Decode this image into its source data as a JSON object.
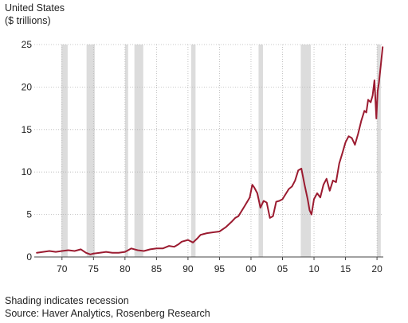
{
  "header": {
    "line1": "United States",
    "line2": "($ trillions)"
  },
  "footer": {
    "note": "Shading indicates recession",
    "source": "Source: Haver Analytics, Rosenberg Research"
  },
  "chart_data": {
    "type": "line",
    "series_color": "#9b1b30",
    "recession_color": "#dcdcdc",
    "grid": true,
    "xlim": [
      1965.6,
      2021.0
    ],
    "ylim": [
      0,
      25
    ],
    "x_ticks": [
      1970,
      1975,
      1980,
      1985,
      1990,
      1995,
      2000,
      2005,
      2010,
      2015,
      2020
    ],
    "x_tick_labels": [
      "70",
      "75",
      "80",
      "85",
      "90",
      "95",
      "00",
      "05",
      "10",
      "15",
      "20"
    ],
    "y_ticks": [
      0,
      5,
      10,
      15,
      20,
      25
    ],
    "y_tick_labels": [
      "0",
      "5",
      "10",
      "15",
      "20",
      "25"
    ],
    "recessions": [
      [
        1969.9,
        1970.9
      ],
      [
        1973.9,
        1975.2
      ],
      [
        1980.0,
        1980.5
      ],
      [
        1981.5,
        1982.9
      ],
      [
        1990.5,
        1991.2
      ],
      [
        2001.2,
        2001.9
      ],
      [
        2007.9,
        2009.5
      ],
      [
        2020.0,
        2020.6
      ]
    ],
    "series": [
      {
        "x": [
          1966.0,
          1967.0,
          1968.0,
          1969.0,
          1970.0,
          1971.0,
          1972.0,
          1973.0,
          1973.8,
          1974.5,
          1975.0,
          1976.0,
          1977.0,
          1978.0,
          1979.0,
          1980.0,
          1980.5,
          1981.0,
          1982.0,
          1983.0,
          1984.0,
          1985.0,
          1986.0,
          1987.0,
          1987.8,
          1988.5,
          1989.0,
          1990.0,
          1990.8,
          1991.5,
          1992.0,
          1993.0,
          1994.0,
          1995.0,
          1996.0,
          1997.0,
          1997.5,
          1998.0,
          1999.0,
          1999.8,
          2000.2,
          2000.5,
          2001.0,
          2001.5,
          2002.0,
          2002.5,
          2003.0,
          2003.5,
          2004.0,
          2004.5,
          2005.0,
          2006.0,
          2006.5,
          2007.0,
          2007.5,
          2008.0,
          2008.5,
          2009.0,
          2009.3,
          2009.6,
          2010.0,
          2010.5,
          2011.0,
          2011.5,
          2012.0,
          2012.5,
          2013.0,
          2013.5,
          2014.0,
          2014.5,
          2015.0,
          2015.5,
          2016.0,
          2016.5,
          2017.0,
          2017.5,
          2018.0,
          2018.3,
          2018.6,
          2019.0,
          2019.3,
          2019.6,
          2019.9,
          2020.1,
          2020.3,
          2020.6,
          2020.9
        ],
        "values": [
          0.5,
          0.6,
          0.7,
          0.6,
          0.7,
          0.8,
          0.7,
          0.9,
          0.5,
          0.3,
          0.4,
          0.5,
          0.6,
          0.5,
          0.5,
          0.6,
          0.8,
          1.0,
          0.8,
          0.7,
          0.9,
          1.0,
          1.0,
          1.3,
          1.2,
          1.5,
          1.8,
          2.0,
          1.7,
          2.2,
          2.6,
          2.8,
          2.9,
          3.0,
          3.5,
          4.2,
          4.6,
          4.8,
          6.0,
          7.0,
          8.5,
          8.2,
          7.5,
          5.8,
          6.6,
          6.4,
          4.6,
          4.8,
          6.5,
          6.6,
          6.8,
          8.0,
          8.3,
          9.0,
          10.2,
          10.4,
          8.5,
          6.8,
          5.5,
          5.0,
          6.8,
          7.5,
          7.0,
          8.5,
          9.2,
          7.8,
          9.0,
          8.8,
          11.0,
          12.2,
          13.5,
          14.2,
          14.0,
          13.2,
          14.5,
          16.0,
          17.2,
          17.0,
          18.5,
          18.2,
          19.0,
          20.8,
          16.3,
          19.5,
          20.5,
          22.5,
          24.7
        ]
      }
    ]
  }
}
